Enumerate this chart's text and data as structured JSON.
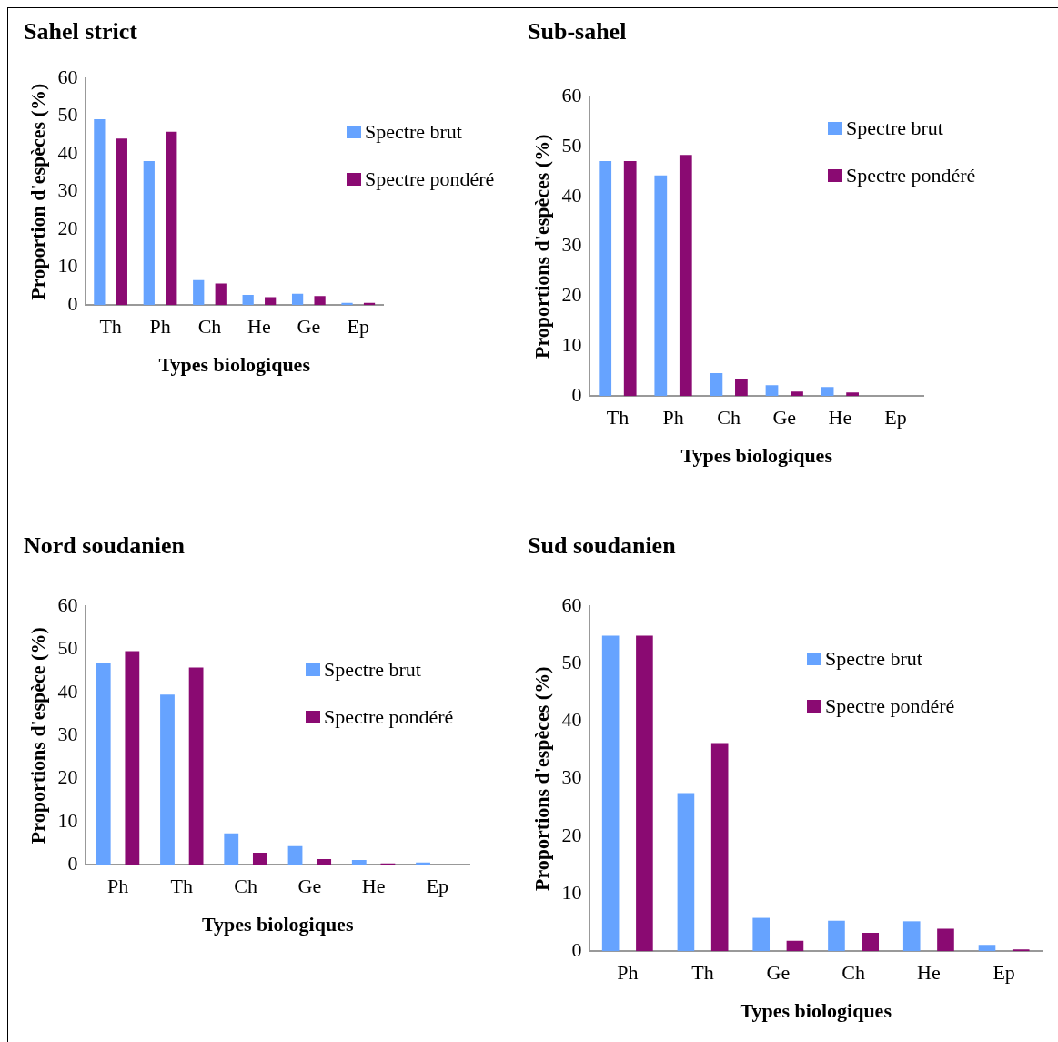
{
  "chart_data": [
    {
      "type": "bar",
      "title": "Sahel strict",
      "xlabel": "Types biologiques",
      "ylabel": "Proportion d'espèces (%)",
      "categories": [
        "Th",
        "Ph",
        "Ch",
        "He",
        "Ge",
        "Ep"
      ],
      "series": [
        {
          "name": "Spectre brut",
          "color": "#66a3ff",
          "values": [
            49.2,
            38.1,
            6.6,
            2.7,
            3.0,
            0.6
          ]
        },
        {
          "name": "Spectre pondéré",
          "color": "#8a0a72",
          "values": [
            44.1,
            45.9,
            5.7,
            2.1,
            2.4,
            0.6
          ]
        }
      ],
      "ylim": [
        0,
        60
      ],
      "yticks": [
        0,
        10,
        20,
        30,
        40,
        50,
        60
      ],
      "grid": false,
      "legend": "right"
    },
    {
      "type": "bar",
      "title": "Sub-sahel",
      "xlabel": "Types biologiques",
      "ylabel": "Proportions d'espèces (%)",
      "categories": [
        "Th",
        "Ph",
        "Ch",
        "Ge",
        "He",
        "Ep"
      ],
      "series": [
        {
          "name": "Spectre brut",
          "color": "#66a3ff",
          "values": [
            47.1,
            44.2,
            4.6,
            2.2,
            1.8,
            null
          ]
        },
        {
          "name": "Spectre pondéré",
          "color": "#8a0a72",
          "values": [
            47.1,
            48.3,
            3.3,
            0.9,
            0.7,
            null
          ]
        }
      ],
      "ylim": [
        0,
        60
      ],
      "yticks": [
        0,
        10,
        20,
        30,
        40,
        50,
        60
      ],
      "grid": false,
      "legend": "right"
    },
    {
      "type": "bar",
      "title": "Nord soudanien",
      "xlabel": "Types biologiques",
      "ylabel": "Proportions d'espèce (%)",
      "categories": [
        "Ph",
        "Th",
        "Ch",
        "Ge",
        "He",
        "Ep"
      ],
      "series": [
        {
          "name": "Spectre brut",
          "color": "#66a3ff",
          "values": [
            46.9,
            39.5,
            7.3,
            4.3,
            1.1,
            0.5
          ]
        },
        {
          "name": "Spectre pondéré",
          "color": "#8a0a72",
          "values": [
            49.6,
            45.8,
            2.8,
            1.3,
            0.3,
            null
          ]
        }
      ],
      "ylim": [
        0,
        60
      ],
      "yticks": [
        0,
        10,
        20,
        30,
        40,
        50,
        60
      ],
      "grid": false,
      "legend": "right"
    },
    {
      "type": "bar",
      "title": "Sud soudanien",
      "xlabel": "Types biologiques",
      "ylabel": "Proportions d'espèces (%)",
      "categories": [
        "Ph",
        "Th",
        "Ge",
        "Ch",
        "He",
        "Ep"
      ],
      "series": [
        {
          "name": "Spectre brut",
          "color": "#66a3ff",
          "values": [
            54.9,
            27.5,
            5.8,
            5.3,
            5.2,
            1.1
          ]
        },
        {
          "name": "Spectre pondéré",
          "color": "#8a0a72",
          "values": [
            54.9,
            36.2,
            1.8,
            3.2,
            3.9,
            0.3
          ]
        }
      ],
      "ylim": [
        0,
        60
      ],
      "yticks": [
        0,
        10,
        20,
        30,
        40,
        50,
        60
      ],
      "grid": false,
      "legend": "right"
    }
  ]
}
